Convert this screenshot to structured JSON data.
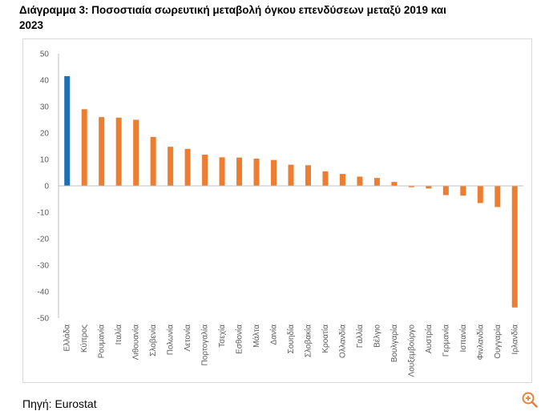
{
  "title": "Διάγραμμα 3:  Ποσοστιαία σωρευτική μεταβολή όγκου επενδύσεων μεταξύ 2019 και 2023",
  "source": "Πηγή: Eurostat",
  "colors": {
    "highlight": "#1F6FB4",
    "default": "#ED7D31",
    "axis": "#BFBFBF",
    "text": "#595959",
    "zoom": "#E8823A"
  },
  "chart_data": {
    "type": "bar",
    "title": "Ποσοστιαία σωρευτική μεταβολή όγκου επενδύσεων μεταξύ 2019 και 2023",
    "xlabel": "",
    "ylabel": "",
    "ylim": [
      -50,
      50
    ],
    "yticks": [
      "50",
      "40",
      "30",
      "20",
      "10",
      "0",
      "-10",
      "-20",
      "-30",
      "-40",
      "-50"
    ],
    "ytick_values": [
      50,
      40,
      30,
      20,
      10,
      0,
      -10,
      -20,
      -30,
      -40,
      -50
    ],
    "grid": false,
    "highlight": "Ελλάδα",
    "categories": [
      "Ελλάδα",
      "Κύπρος",
      "Ρουμανία",
      "Ιταλία",
      "Λιθουανία",
      "Σλοβενία",
      "Πολωνία",
      "Λετονία",
      "Πορτογαλία",
      "Τσεχία",
      "Εσθονία",
      "Μάλτα",
      "Δανία",
      "Σουηδία",
      "Σλοβακία",
      "Κροατία",
      "Ολλανδία",
      "Γαλλία",
      "Βέλγιο",
      "Βουλγαρία",
      "Λουξεμβούργο",
      "Αυστρία",
      "Γερμανία",
      "Ισπανία",
      "Φινλανδία",
      "Ουγγαρία",
      "Ιρλανδία"
    ],
    "values": [
      41.5,
      29,
      26,
      25.8,
      25,
      18.5,
      14.8,
      14,
      11.8,
      10.8,
      10.7,
      10.3,
      9.8,
      8,
      7.8,
      5.5,
      4.5,
      3.5,
      3,
      1.5,
      -0.5,
      -1,
      -3.5,
      -3.7,
      -6.5,
      -8,
      -46
    ]
  }
}
